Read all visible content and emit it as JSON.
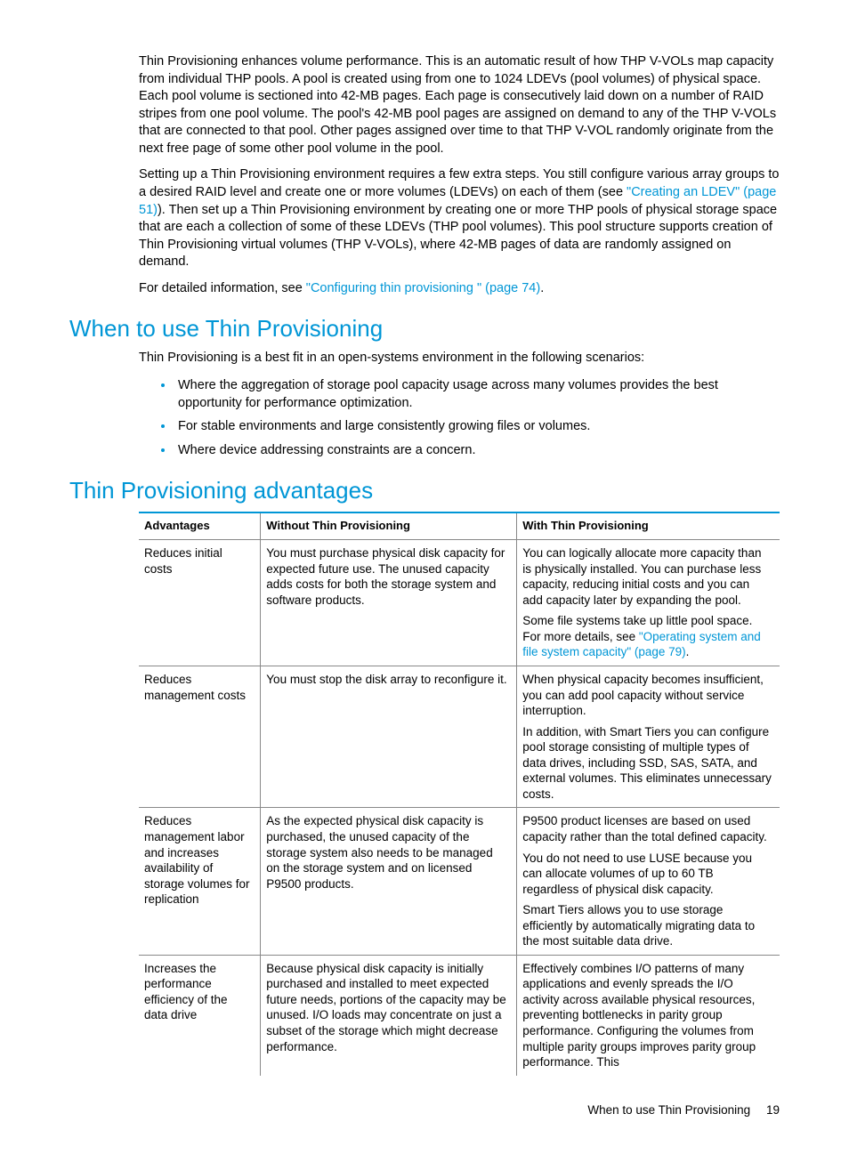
{
  "colors": {
    "accent": "#0096d6",
    "text": "#000000",
    "rule": "#888888",
    "background": "#ffffff"
  },
  "typography": {
    "body_family": "Arial, Helvetica, sans-serif",
    "body_size_pt": 11,
    "heading_size_pt": 20,
    "heading_weight": 300
  },
  "intro": {
    "p1": "Thin Provisioning enhances volume performance. This is an automatic result of how THP V-VOLs map capacity from individual THP pools. A pool is created using from one to 1024 LDEVs (pool volumes) of physical space. Each pool volume is sectioned into 42-MB pages. Each page is consecutively laid down on a number of RAID stripes from one pool volume. The pool's 42-MB pool pages are assigned on demand to any of the THP V-VOLs that are connected to that pool. Other pages assigned over time to that THP V-VOL randomly originate from the next free page of some other pool volume in the pool.",
    "p2_a": "Setting up a Thin Provisioning environment requires a few extra steps. You still configure various array groups to a desired RAID level and create one or more volumes (LDEVs) on each of them (see ",
    "p2_link": "\"Creating an LDEV\" (page 51)",
    "p2_b": "). Then set up a Thin Provisioning environment by creating one or more THP pools of physical storage space that are each a collection of some of these LDEVs (THP pool volumes). This pool structure supports creation of Thin Provisioning virtual volumes (THP V-VOLs), where 42-MB pages of data are randomly assigned on demand.",
    "p3_a": "For detailed information, see ",
    "p3_link": "\"Configuring thin provisioning \" (page 74)",
    "p3_b": "."
  },
  "when": {
    "heading": "When to use Thin Provisioning",
    "lead": "Thin Provisioning is a best fit in an open-systems environment in the following scenarios:",
    "items": [
      "Where the aggregation of storage pool capacity usage across many volumes provides the best opportunity for performance optimization.",
      "For stable environments and large consistently growing files or volumes.",
      "Where device addressing constraints are a concern."
    ]
  },
  "advantages": {
    "heading": "Thin Provisioning advantages",
    "columns": [
      "Advantages",
      "Without Thin Provisioning",
      "With Thin Provisioning"
    ],
    "col_widths_pct": [
      19,
      40,
      41
    ],
    "rows": [
      {
        "adv": "Reduces initial costs",
        "without": [
          "You must purchase physical disk capacity for expected future use. The unused capacity adds costs for both the storage system and software products."
        ],
        "with": [
          "You can logically allocate more capacity than is physically installed. You can purchase less capacity, reducing initial costs and you can add capacity later by expanding the pool.",
          {
            "pre": "Some file systems take up little pool space. For more details, see ",
            "link": "\"Operating system and file system capacity\" (page 79)",
            "post": "."
          }
        ]
      },
      {
        "adv": "Reduces management costs",
        "without": [
          "You must stop the disk array to reconfigure it."
        ],
        "with": [
          "When physical capacity becomes insufficient, you can add pool capacity without service interruption.",
          "In addition, with Smart Tiers you can configure pool storage consisting of multiple types of data drives, including SSD, SAS, SATA, and external volumes. This eliminates unnecessary costs."
        ]
      },
      {
        "adv": "Reduces management labor and increases availability of storage volumes for replication",
        "without": [
          "As the expected physical disk capacity is purchased, the unused capacity of the storage system also needs to be managed on the storage system and on licensed P9500 products."
        ],
        "with": [
          "P9500 product licenses are based on used capacity rather than the total defined capacity.",
          "You do not need to use LUSE because you can allocate volumes of up to 60 TB regardless of physical disk capacity.",
          "Smart Tiers allows you to use storage efficiently by automatically migrating data to the most suitable data drive."
        ]
      },
      {
        "adv": "Increases the performance efficiency of the data drive",
        "without": [
          "Because physical disk capacity is initially purchased and installed to meet expected future needs, portions of the capacity may be unused. I/O loads may concentrate on just a subset of the storage which might decrease performance."
        ],
        "with": [
          "Effectively combines I/O patterns of many applications and evenly spreads the I/O activity across available physical resources, preventing bottlenecks in parity group performance. Configuring the volumes from multiple parity groups improves parity group performance. This"
        ]
      }
    ]
  },
  "footer": {
    "title": "When to use Thin Provisioning",
    "page": "19"
  }
}
